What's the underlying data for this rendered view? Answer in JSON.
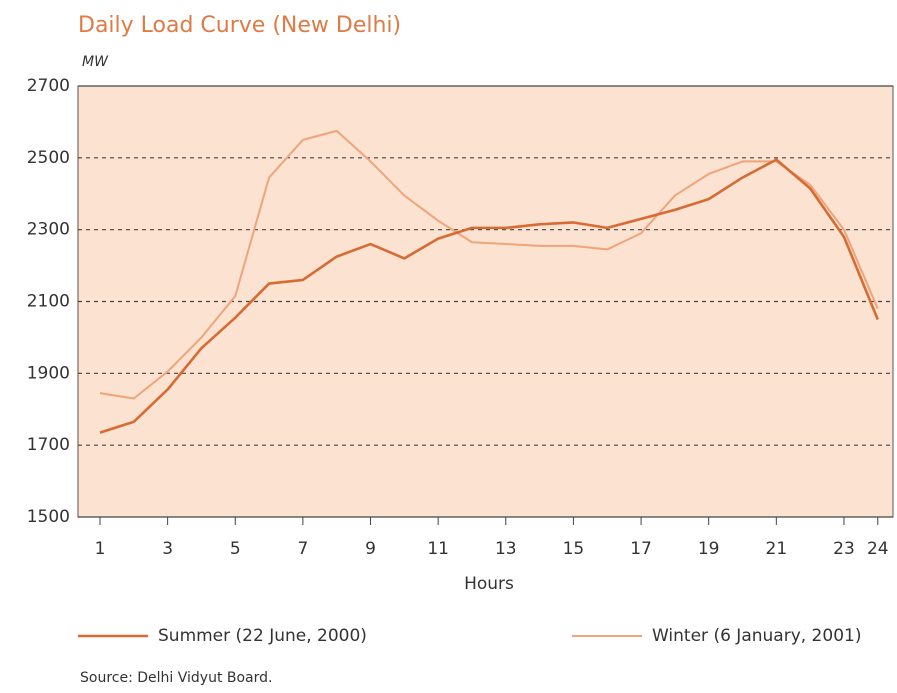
{
  "chart_data": {
    "type": "line",
    "title": "Daily Load Curve (New Delhi)",
    "ylabel": "MW",
    "xlabel": "Hours",
    "x": [
      1,
      2,
      3,
      4,
      5,
      6,
      7,
      8,
      9,
      10,
      11,
      12,
      13,
      14,
      15,
      16,
      17,
      18,
      19,
      20,
      21,
      22,
      23,
      24
    ],
    "series": [
      {
        "name": "Summer (22 June, 2000)",
        "color": "#d76b34",
        "width": 2.6,
        "values": [
          1735,
          1765,
          1855,
          1970,
          2055,
          2150,
          2160,
          2225,
          2260,
          2220,
          2275,
          2305,
          2305,
          2315,
          2320,
          2305,
          2330,
          2355,
          2385,
          2445,
          2495,
          2415,
          2280,
          2050
        ]
      },
      {
        "name": "Winter (6 January, 2001)",
        "color": "#f0a47a",
        "width": 2,
        "values": [
          1845,
          1830,
          1905,
          2000,
          2115,
          2445,
          2550,
          2575,
          2490,
          2395,
          2325,
          2265,
          2260,
          2255,
          2255,
          2245,
          2290,
          2395,
          2455,
          2490,
          2490,
          2425,
          2300,
          2080
        ]
      }
    ],
    "xlim": [
      0.35,
      24.45
    ],
    "xticks": [
      1,
      3,
      5,
      7,
      9,
      11,
      13,
      15,
      17,
      19,
      21,
      23,
      24
    ],
    "ylim": [
      1500,
      2700
    ],
    "yticks": [
      1500,
      1700,
      1900,
      2100,
      2300,
      2500,
      2700
    ],
    "grid": true,
    "legend": "bottom",
    "source": "Source: Delhi Vidyut Board."
  }
}
